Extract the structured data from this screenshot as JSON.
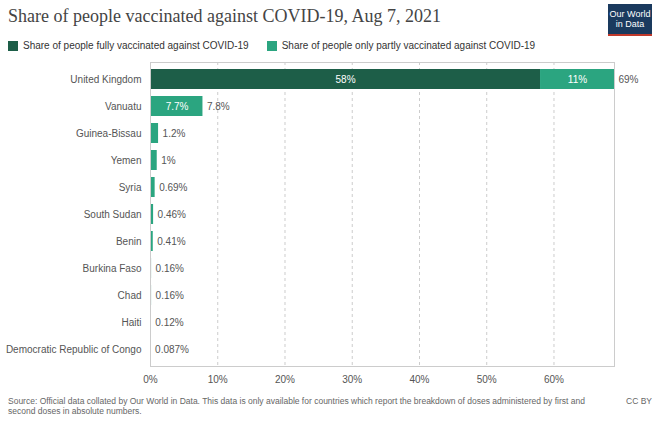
{
  "chart_data": {
    "type": "bar",
    "orientation": "horizontal",
    "stacked": true,
    "title": "Share of people vaccinated against COVID-19, Aug 7, 2021",
    "logo": "Our World in Data",
    "caption": "Source: Official data collated by Our World in Data. This data is only available for countries which report the breakdown of doses administered by first and second doses in absolute numbers.",
    "license": "CC BY",
    "categories": [
      "United Kingdom",
      "Vanuatu",
      "Guinea-Bissau",
      "Yemen",
      "Syria",
      "South Sudan",
      "Benin",
      "Burkina Faso",
      "Chad",
      "Haiti",
      "Democratic Republic of Congo"
    ],
    "series": [
      {
        "name": "Share of people fully vaccinated against COVID-19",
        "color": "#1d5e48",
        "values": [
          58,
          0.1,
          0,
          0,
          0,
          0,
          0,
          0,
          0,
          0,
          0
        ],
        "value_labels": [
          "58%",
          null,
          null,
          null,
          null,
          null,
          null,
          null,
          null,
          null,
          null
        ]
      },
      {
        "name": "Share of people only partly vaccinated against COVID-19",
        "color": "#2ba580",
        "values": [
          11,
          7.7,
          1.2,
          1,
          0.69,
          0.46,
          0.41,
          0.16,
          0.16,
          0.12,
          0.087
        ],
        "value_labels": [
          "11%",
          "7.7%",
          null,
          null,
          null,
          null,
          null,
          null,
          null,
          null,
          null
        ]
      }
    ],
    "totals": [
      69,
      7.8,
      1.2,
      1,
      0.69,
      0.46,
      0.41,
      0.16,
      0.16,
      0.12,
      0.087
    ],
    "total_labels": [
      "69%",
      "7.8%",
      "1.2%",
      "1%",
      "0.69%",
      "0.46%",
      "0.41%",
      "0.16%",
      "0.16%",
      "0.12%",
      "0.087%"
    ],
    "xlim": [
      0,
      69
    ],
    "xticks": [
      {
        "value": 0,
        "label": "0%"
      },
      {
        "value": 10,
        "label": "10%"
      },
      {
        "value": 20,
        "label": "20%"
      },
      {
        "value": 30,
        "label": "30%"
      },
      {
        "value": 40,
        "label": "40%"
      },
      {
        "value": 50,
        "label": "50%"
      },
      {
        "value": 60,
        "label": "60%"
      }
    ],
    "grid": true,
    "data_labels": true,
    "legend": "top-left"
  }
}
